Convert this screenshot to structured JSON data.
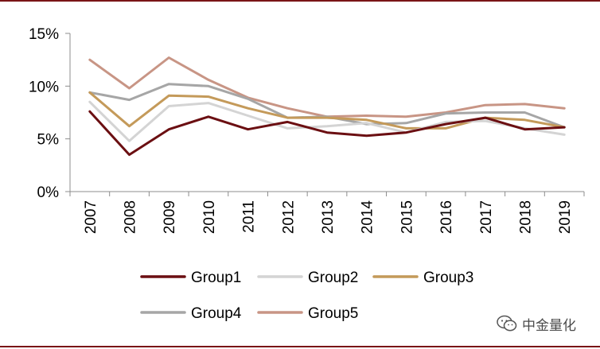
{
  "chart_data": {
    "type": "line",
    "title": "",
    "xlabel": "",
    "ylabel": "",
    "categories": [
      "2007",
      "2008",
      "2009",
      "2010",
      "2011",
      "2012",
      "2013",
      "2014",
      "2015",
      "2016",
      "2017",
      "2018",
      "2019"
    ],
    "y_ticks": [
      "0%",
      "5%",
      "10%",
      "15%"
    ],
    "ylim": [
      0,
      15
    ],
    "y_unit": "%",
    "grid": false,
    "legend_position": "bottom",
    "series": [
      {
        "name": "Group1",
        "color": "#6b0f12",
        "values": [
          7.6,
          3.5,
          5.9,
          7.1,
          5.9,
          6.6,
          5.6,
          5.3,
          5.6,
          6.4,
          7.0,
          5.9,
          6.1
        ]
      },
      {
        "name": "Group2",
        "color": "#d4d4d4",
        "values": [
          8.5,
          4.8,
          8.1,
          8.4,
          7.2,
          6.0,
          6.2,
          6.5,
          5.6,
          6.6,
          6.7,
          6.0,
          5.4
        ]
      },
      {
        "name": "Group3",
        "color": "#c49a5a",
        "values": [
          9.4,
          6.2,
          9.1,
          9.0,
          7.9,
          7.0,
          7.0,
          6.8,
          6.0,
          6.0,
          7.0,
          6.8,
          6.1
        ]
      },
      {
        "name": "Group4",
        "color": "#a6a6a6",
        "values": [
          9.4,
          8.7,
          10.2,
          10.0,
          8.8,
          7.0,
          7.1,
          6.4,
          6.5,
          7.4,
          7.5,
          7.5,
          6.1
        ]
      },
      {
        "name": "Group5",
        "color": "#c89585",
        "values": [
          12.5,
          9.8,
          12.7,
          10.6,
          8.9,
          7.9,
          7.1,
          7.2,
          7.1,
          7.5,
          8.2,
          8.3,
          7.9
        ]
      }
    ]
  },
  "watermark": {
    "text": "中金量化",
    "icon": "wechat-icon"
  }
}
